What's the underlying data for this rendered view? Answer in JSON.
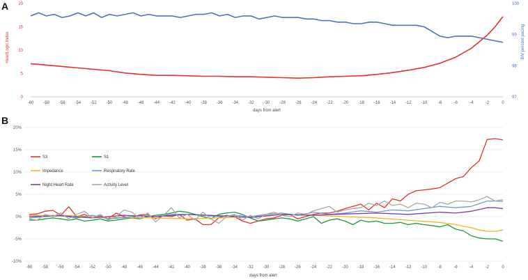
{
  "chart_data": [
    {
      "panel_label": "A",
      "type": "line",
      "xlabel": "days from alert",
      "ylabel_left": "HeartLogic Index",
      "ylabel_right": "BiV percent pacing",
      "xlim": [
        -60,
        0
      ],
      "ylim_left": [
        0,
        20
      ],
      "ylim_right": [
        97,
        100
      ],
      "x_ticks": [
        "-60",
        "-58",
        "-56",
        "-54",
        "-52",
        "-50",
        "-48",
        "-46",
        "-44",
        "-42",
        "-40",
        "-38",
        "-36",
        "-34",
        "-32",
        "-30",
        "-28",
        "-26",
        "-24",
        "-22",
        "-20",
        "-18",
        "-16",
        "-14",
        "-12",
        "-10",
        "-8",
        "-6",
        "-4",
        "-2",
        "0"
      ],
      "y_ticks_left": [
        "0",
        "5",
        "10",
        "15",
        "20"
      ],
      "y_ticks_right": [
        "97",
        "98",
        "99",
        "100"
      ],
      "series": [
        {
          "name": "HeartLogic Index",
          "axis": "left",
          "color": "#e8312a",
          "x": [
            -60,
            -58,
            -56,
            -54,
            -52,
            -50,
            -48,
            -46,
            -44,
            -42,
            -40,
            -38,
            -36,
            -34,
            -32,
            -30,
            -28,
            -26,
            -24,
            -22,
            -20,
            -18,
            -16,
            -14,
            -12,
            -10,
            -8,
            -6,
            -4,
            -2,
            -1,
            0
          ],
          "values": [
            7.1,
            6.8,
            6.5,
            6.2,
            5.9,
            5.6,
            5.1,
            4.8,
            4.6,
            4.6,
            4.5,
            4.4,
            4.4,
            4.3,
            4.3,
            4.2,
            4.1,
            4.0,
            4.1,
            4.3,
            4.4,
            4.5,
            4.8,
            5.2,
            5.7,
            6.3,
            7.2,
            8.5,
            10.4,
            13.2,
            15.0,
            17.2
          ]
        },
        {
          "name": "BiV percent pacing",
          "axis": "right",
          "color": "#4a72c4",
          "x": [
            -60,
            -59,
            -58,
            -57,
            -56,
            -55,
            -54,
            -53,
            -52,
            -51,
            -50,
            -49,
            -48,
            -47,
            -46,
            -45,
            -44,
            -43,
            -42,
            -41,
            -40,
            -39,
            -38,
            -37,
            -36,
            -35,
            -34,
            -33,
            -32,
            -31,
            -30,
            -29,
            -28,
            -27,
            -26,
            -25,
            -24,
            -23,
            -22,
            -21,
            -20,
            -19,
            -18,
            -17,
            -16,
            -15,
            -14,
            -13,
            -12,
            -11,
            -10,
            -9,
            -8,
            -7,
            -6,
            -5,
            -4,
            -3,
            -2,
            -1,
            0
          ],
          "values": [
            99.6,
            99.7,
            99.6,
            99.65,
            99.55,
            99.6,
            99.7,
            99.6,
            99.7,
            99.55,
            99.65,
            99.6,
            99.65,
            99.7,
            99.6,
            99.65,
            99.6,
            99.6,
            99.6,
            99.55,
            99.6,
            99.65,
            99.65,
            99.7,
            99.6,
            99.65,
            99.55,
            99.6,
            99.6,
            99.5,
            99.55,
            99.6,
            99.55,
            99.55,
            99.55,
            99.5,
            99.5,
            99.45,
            99.45,
            99.4,
            99.4,
            99.35,
            99.35,
            99.4,
            99.4,
            99.35,
            99.3,
            99.3,
            99.3,
            99.3,
            99.25,
            99.1,
            98.95,
            98.9,
            98.95,
            98.95,
            98.95,
            98.9,
            98.85,
            98.8,
            98.75
          ]
        }
      ]
    },
    {
      "panel_label": "B",
      "type": "line",
      "xlabel": "days from alert",
      "ylabel": "",
      "xlim": [
        -60,
        0
      ],
      "ylim": [
        -10,
        20
      ],
      "x_ticks": [
        "-60",
        "-58",
        "-56",
        "-54",
        "-52",
        "-50",
        "-48",
        "-46",
        "-44",
        "-42",
        "-40",
        "-38",
        "-36",
        "-34",
        "-32",
        "-30",
        "-28",
        "-26",
        "-24",
        "-22",
        "-20",
        "-18",
        "-16",
        "-14",
        "-12",
        "-10",
        "-8",
        "-6",
        "-4",
        "-2",
        "0"
      ],
      "y_ticks": [
        "-10%",
        "-5%",
        "0%",
        "5%",
        "10%",
        "15%",
        "20%"
      ],
      "series": [
        {
          "name": "S3",
          "color": "#e8312a",
          "x": [
            -60,
            -59,
            -58,
            -57,
            -56,
            -55,
            -54,
            -53,
            -52,
            -51,
            -50,
            -49,
            -48,
            -47,
            -46,
            -45,
            -44,
            -43,
            -42,
            -41,
            -40,
            -39,
            -38,
            -37,
            -36,
            -35,
            -34,
            -33,
            -32,
            -31,
            -30,
            -29,
            -28,
            -27,
            -26,
            -25,
            -24,
            -23,
            -22,
            -21,
            -20,
            -19,
            -18,
            -17,
            -16,
            -15,
            -14,
            -13,
            -12,
            -11,
            -10,
            -9,
            -8,
            -7,
            -6,
            -5,
            -4,
            -3,
            -2,
            -1,
            0
          ],
          "values": [
            0.5,
            0.6,
            1.2,
            1.4,
            0.3,
            2.2,
            0.0,
            0.5,
            -0.3,
            0.2,
            -0.5,
            0.8,
            0.0,
            -0.3,
            0.4,
            0.5,
            -0.5,
            0.2,
            0.0,
            0.5,
            -0.8,
            -0.5,
            -1.8,
            -1.8,
            -0.3,
            0.3,
            0.0,
            -1.0,
            -1.5,
            -1.0,
            -0.5,
            -0.3,
            0.3,
            0.5,
            -0.5,
            0.0,
            0.5,
            0.8,
            0.8,
            1.2,
            1.8,
            2.3,
            2.8,
            1.5,
            3.0,
            2.0,
            4.0,
            3.5,
            5.0,
            5.8,
            6.0,
            6.2,
            6.5,
            7.5,
            8.5,
            9.0,
            11.0,
            12.5,
            17.3,
            17.5,
            17.2
          ]
        },
        {
          "name": "S1",
          "color": "#1a9a3c",
          "x": [
            -60,
            -59,
            -58,
            -57,
            -56,
            -55,
            -54,
            -53,
            -52,
            -51,
            -50,
            -49,
            -48,
            -47,
            -46,
            -45,
            -44,
            -43,
            -42,
            -41,
            -40,
            -39,
            -38,
            -37,
            -36,
            -35,
            -34,
            -33,
            -32,
            -31,
            -30,
            -29,
            -28,
            -27,
            -26,
            -25,
            -24,
            -23,
            -22,
            -21,
            -20,
            -19,
            -18,
            -17,
            -16,
            -15,
            -14,
            -13,
            -12,
            -11,
            -10,
            -9,
            -8,
            -7,
            -6,
            -5,
            -4,
            -3,
            -2,
            -1,
            0
          ],
          "values": [
            -0.8,
            -0.8,
            -0.5,
            -0.3,
            -0.5,
            -0.8,
            -0.5,
            -1.0,
            -0.8,
            -0.5,
            -1.0,
            -0.8,
            -0.5,
            -0.3,
            -0.5,
            0.0,
            0.3,
            0.5,
            0.8,
            1.2,
            1.0,
            0.5,
            0.0,
            -0.5,
            0.5,
            0.8,
            1.0,
            0.5,
            -0.3,
            -1.0,
            -0.8,
            -0.5,
            -0.3,
            -0.5,
            -1.0,
            -0.5,
            0.0,
            -1.5,
            -0.8,
            -0.5,
            -1.0,
            -1.8,
            -0.8,
            -1.2,
            -1.0,
            -1.5,
            -1.5,
            -1.3,
            -1.8,
            -1.5,
            -1.8,
            -2.0,
            -2.3,
            -1.8,
            -2.8,
            -3.2,
            -4.3,
            -4.8,
            -5.0,
            -5.0,
            -5.5
          ]
        },
        {
          "name": "Impedance",
          "color": "#f5b324",
          "x": [
            -60,
            -56,
            -52,
            -48,
            -44,
            -40,
            -36,
            -32,
            -28,
            -24,
            -20,
            -16,
            -12,
            -8,
            -6,
            -4,
            -3,
            -2,
            -1,
            0
          ],
          "values": [
            0.2,
            0.3,
            0.0,
            -0.2,
            -0.3,
            -0.5,
            -0.3,
            0.0,
            0.5,
            0.3,
            0.0,
            -0.3,
            -0.8,
            -1.3,
            -1.8,
            -2.5,
            -3.0,
            -3.3,
            -3.3,
            -3.0
          ]
        },
        {
          "name": "Respiratory Rate",
          "color": "#6a9ad8",
          "x": [
            -60,
            -58,
            -56,
            -54,
            -52,
            -50,
            -48,
            -46,
            -44,
            -42,
            -40,
            -38,
            -36,
            -34,
            -32,
            -30,
            -28,
            -26,
            -24,
            -22,
            -20,
            -18,
            -16,
            -14,
            -12,
            -10,
            -8,
            -6,
            -4,
            -2,
            -1,
            0
          ],
          "values": [
            -0.3,
            0.0,
            0.2,
            -0.3,
            0.3,
            -0.5,
            -0.2,
            0.3,
            0.0,
            0.5,
            0.5,
            0.3,
            0.0,
            0.3,
            0.0,
            0.5,
            0.8,
            0.3,
            1.0,
            0.5,
            0.8,
            1.3,
            1.0,
            1.5,
            1.3,
            1.8,
            2.3,
            2.0,
            2.3,
            3.5,
            3.5,
            3.4
          ]
        },
        {
          "name": "Night Heart Rate",
          "color": "#7a3f9c",
          "x": [
            -60,
            -56,
            -52,
            -48,
            -44,
            -40,
            -36,
            -32,
            -28,
            -24,
            -20,
            -16,
            -12,
            -8,
            -6,
            -4,
            -2,
            -1,
            0
          ],
          "values": [
            0.0,
            0.2,
            -0.3,
            0.3,
            0.0,
            0.5,
            0.2,
            -0.2,
            0.5,
            0.3,
            0.6,
            0.8,
            0.5,
            1.0,
            0.8,
            1.2,
            2.0,
            2.0,
            1.8
          ]
        },
        {
          "name": "Activity Level",
          "color": "#a8a8a8",
          "x": [
            -60,
            -59,
            -58,
            -57,
            -56,
            -55,
            -54,
            -53,
            -52,
            -51,
            -50,
            -49,
            -48,
            -47,
            -46,
            -45,
            -44,
            -43,
            -42,
            -41,
            -40,
            -39,
            -38,
            -37,
            -36,
            -35,
            -34,
            -33,
            -32,
            -31,
            -30,
            -29,
            -28,
            -27,
            -26,
            -25,
            -24,
            -23,
            -22,
            -21,
            -20,
            -19,
            -18,
            -17,
            -16,
            -15,
            -14,
            -13,
            -12,
            -11,
            -10,
            -9,
            -8,
            -7,
            -6,
            -5,
            -4,
            -3,
            -2,
            -1,
            0
          ],
          "values": [
            -0.5,
            -0.8,
            0.5,
            0.0,
            0.8,
            -0.5,
            0.5,
            1.2,
            -0.3,
            0.5,
            -0.8,
            0.0,
            1.5,
            1.0,
            -0.5,
            0.8,
            -1.2,
            0.3,
            2.0,
            -0.3,
            0.5,
            -0.8,
            1.0,
            -0.5,
            -1.5,
            0.0,
            0.5,
            -0.8,
            0.3,
            -0.5,
            0.5,
            1.0,
            0.3,
            0.0,
            0.8,
            0.5,
            1.3,
            1.8,
            2.3,
            1.0,
            1.5,
            1.8,
            2.0,
            3.0,
            2.5,
            3.5,
            2.5,
            2.8,
            2.0,
            3.0,
            2.8,
            2.0,
            3.2,
            2.8,
            3.5,
            3.5,
            3.3,
            3.8,
            4.5,
            3.5,
            3.8
          ]
        }
      ]
    }
  ]
}
